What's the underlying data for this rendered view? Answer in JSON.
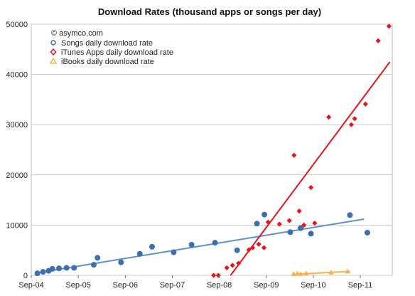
{
  "chart_data": {
    "type": "scatter",
    "title": "Download Rates (thousand apps or songs per day)",
    "annotation": "© asymco.com",
    "xlabel": "",
    "ylabel": "",
    "x_tick_labels": [
      "Sep-04",
      "Sep-05",
      "Sep-06",
      "Sep-07",
      "Sep-08",
      "Sep-09",
      "Sep-10",
      "Sep-11"
    ],
    "x_tick_years": [
      2004.67,
      2005.67,
      2006.67,
      2007.67,
      2008.67,
      2009.67,
      2010.67,
      2011.67
    ],
    "xlim": [
      2004.67,
      2012.35
    ],
    "ylim": [
      0,
      50000
    ],
    "y_ticks": [
      0,
      10000,
      20000,
      30000,
      40000,
      50000
    ],
    "y_tick_labels": [
      "0",
      "10000",
      "20000",
      "30000",
      "40000",
      "50000"
    ],
    "grid": true,
    "legend_position": "top-left",
    "series": [
      {
        "name": "Songs daily download rate",
        "marker": "circle",
        "color": "#3d6fae",
        "points": [
          [
            2004.8,
            400
          ],
          [
            2004.92,
            700
          ],
          [
            2005.04,
            900
          ],
          [
            2005.12,
            1300
          ],
          [
            2005.26,
            1400
          ],
          [
            2005.42,
            1500
          ],
          [
            2005.58,
            1500
          ],
          [
            2006.0,
            2100
          ],
          [
            2006.08,
            3500
          ],
          [
            2006.58,
            2600
          ],
          [
            2006.98,
            4300
          ],
          [
            2007.24,
            5700
          ],
          [
            2007.7,
            4600
          ],
          [
            2008.08,
            6100
          ],
          [
            2008.58,
            6500
          ],
          [
            2009.05,
            5000
          ],
          [
            2009.47,
            10300
          ],
          [
            2009.63,
            12100
          ],
          [
            2010.18,
            8600
          ],
          [
            2010.4,
            9400
          ],
          [
            2010.62,
            8300
          ],
          [
            2011.45,
            12000
          ],
          [
            2011.82,
            8500
          ]
        ]
      },
      {
        "name": "iTunes Apps daily download rate",
        "marker": "diamond",
        "color": "#e8141b",
        "points": [
          [
            2008.55,
            0
          ],
          [
            2008.65,
            0
          ],
          [
            2008.83,
            1500
          ],
          [
            2008.95,
            2000
          ],
          [
            2009.08,
            2400
          ],
          [
            2009.3,
            5100
          ],
          [
            2009.38,
            5500
          ],
          [
            2009.51,
            6200
          ],
          [
            2009.62,
            5500
          ],
          [
            2009.71,
            10600
          ],
          [
            2009.95,
            10200
          ],
          [
            2010.16,
            10900
          ],
          [
            2010.26,
            23900
          ],
          [
            2010.37,
            12800
          ],
          [
            2010.47,
            10000
          ],
          [
            2010.62,
            17500
          ],
          [
            2010.7,
            10400
          ],
          [
            2011.0,
            31500
          ],
          [
            2011.48,
            30000
          ],
          [
            2011.55,
            31200
          ],
          [
            2011.78,
            34100
          ],
          [
            2012.05,
            46700
          ],
          [
            2012.28,
            49600
          ]
        ]
      },
      {
        "name": "iBooks daily download rate",
        "marker": "triangle",
        "color": "#f5b34a",
        "points": [
          [
            2010.25,
            300
          ],
          [
            2010.33,
            400
          ],
          [
            2010.4,
            300
          ],
          [
            2010.52,
            400
          ],
          [
            2011.05,
            600
          ],
          [
            2011.4,
            800
          ]
        ]
      }
    ],
    "trendlines": [
      {
        "series": "Songs daily download rate",
        "color": "#5b8fd4",
        "x": [
          2004.8,
          2011.75
        ],
        "y": [
          500,
          11200
        ]
      },
      {
        "series": "iTunes Apps daily download rate",
        "color": "#e8141b",
        "x": [
          2008.75,
          2012.3
        ],
        "y": [
          -2000,
          42500
        ]
      },
      {
        "series": "iBooks daily download rate",
        "color": "#f5b34a",
        "x": [
          2010.25,
          2011.45
        ],
        "y": [
          200,
          800
        ]
      }
    ]
  }
}
